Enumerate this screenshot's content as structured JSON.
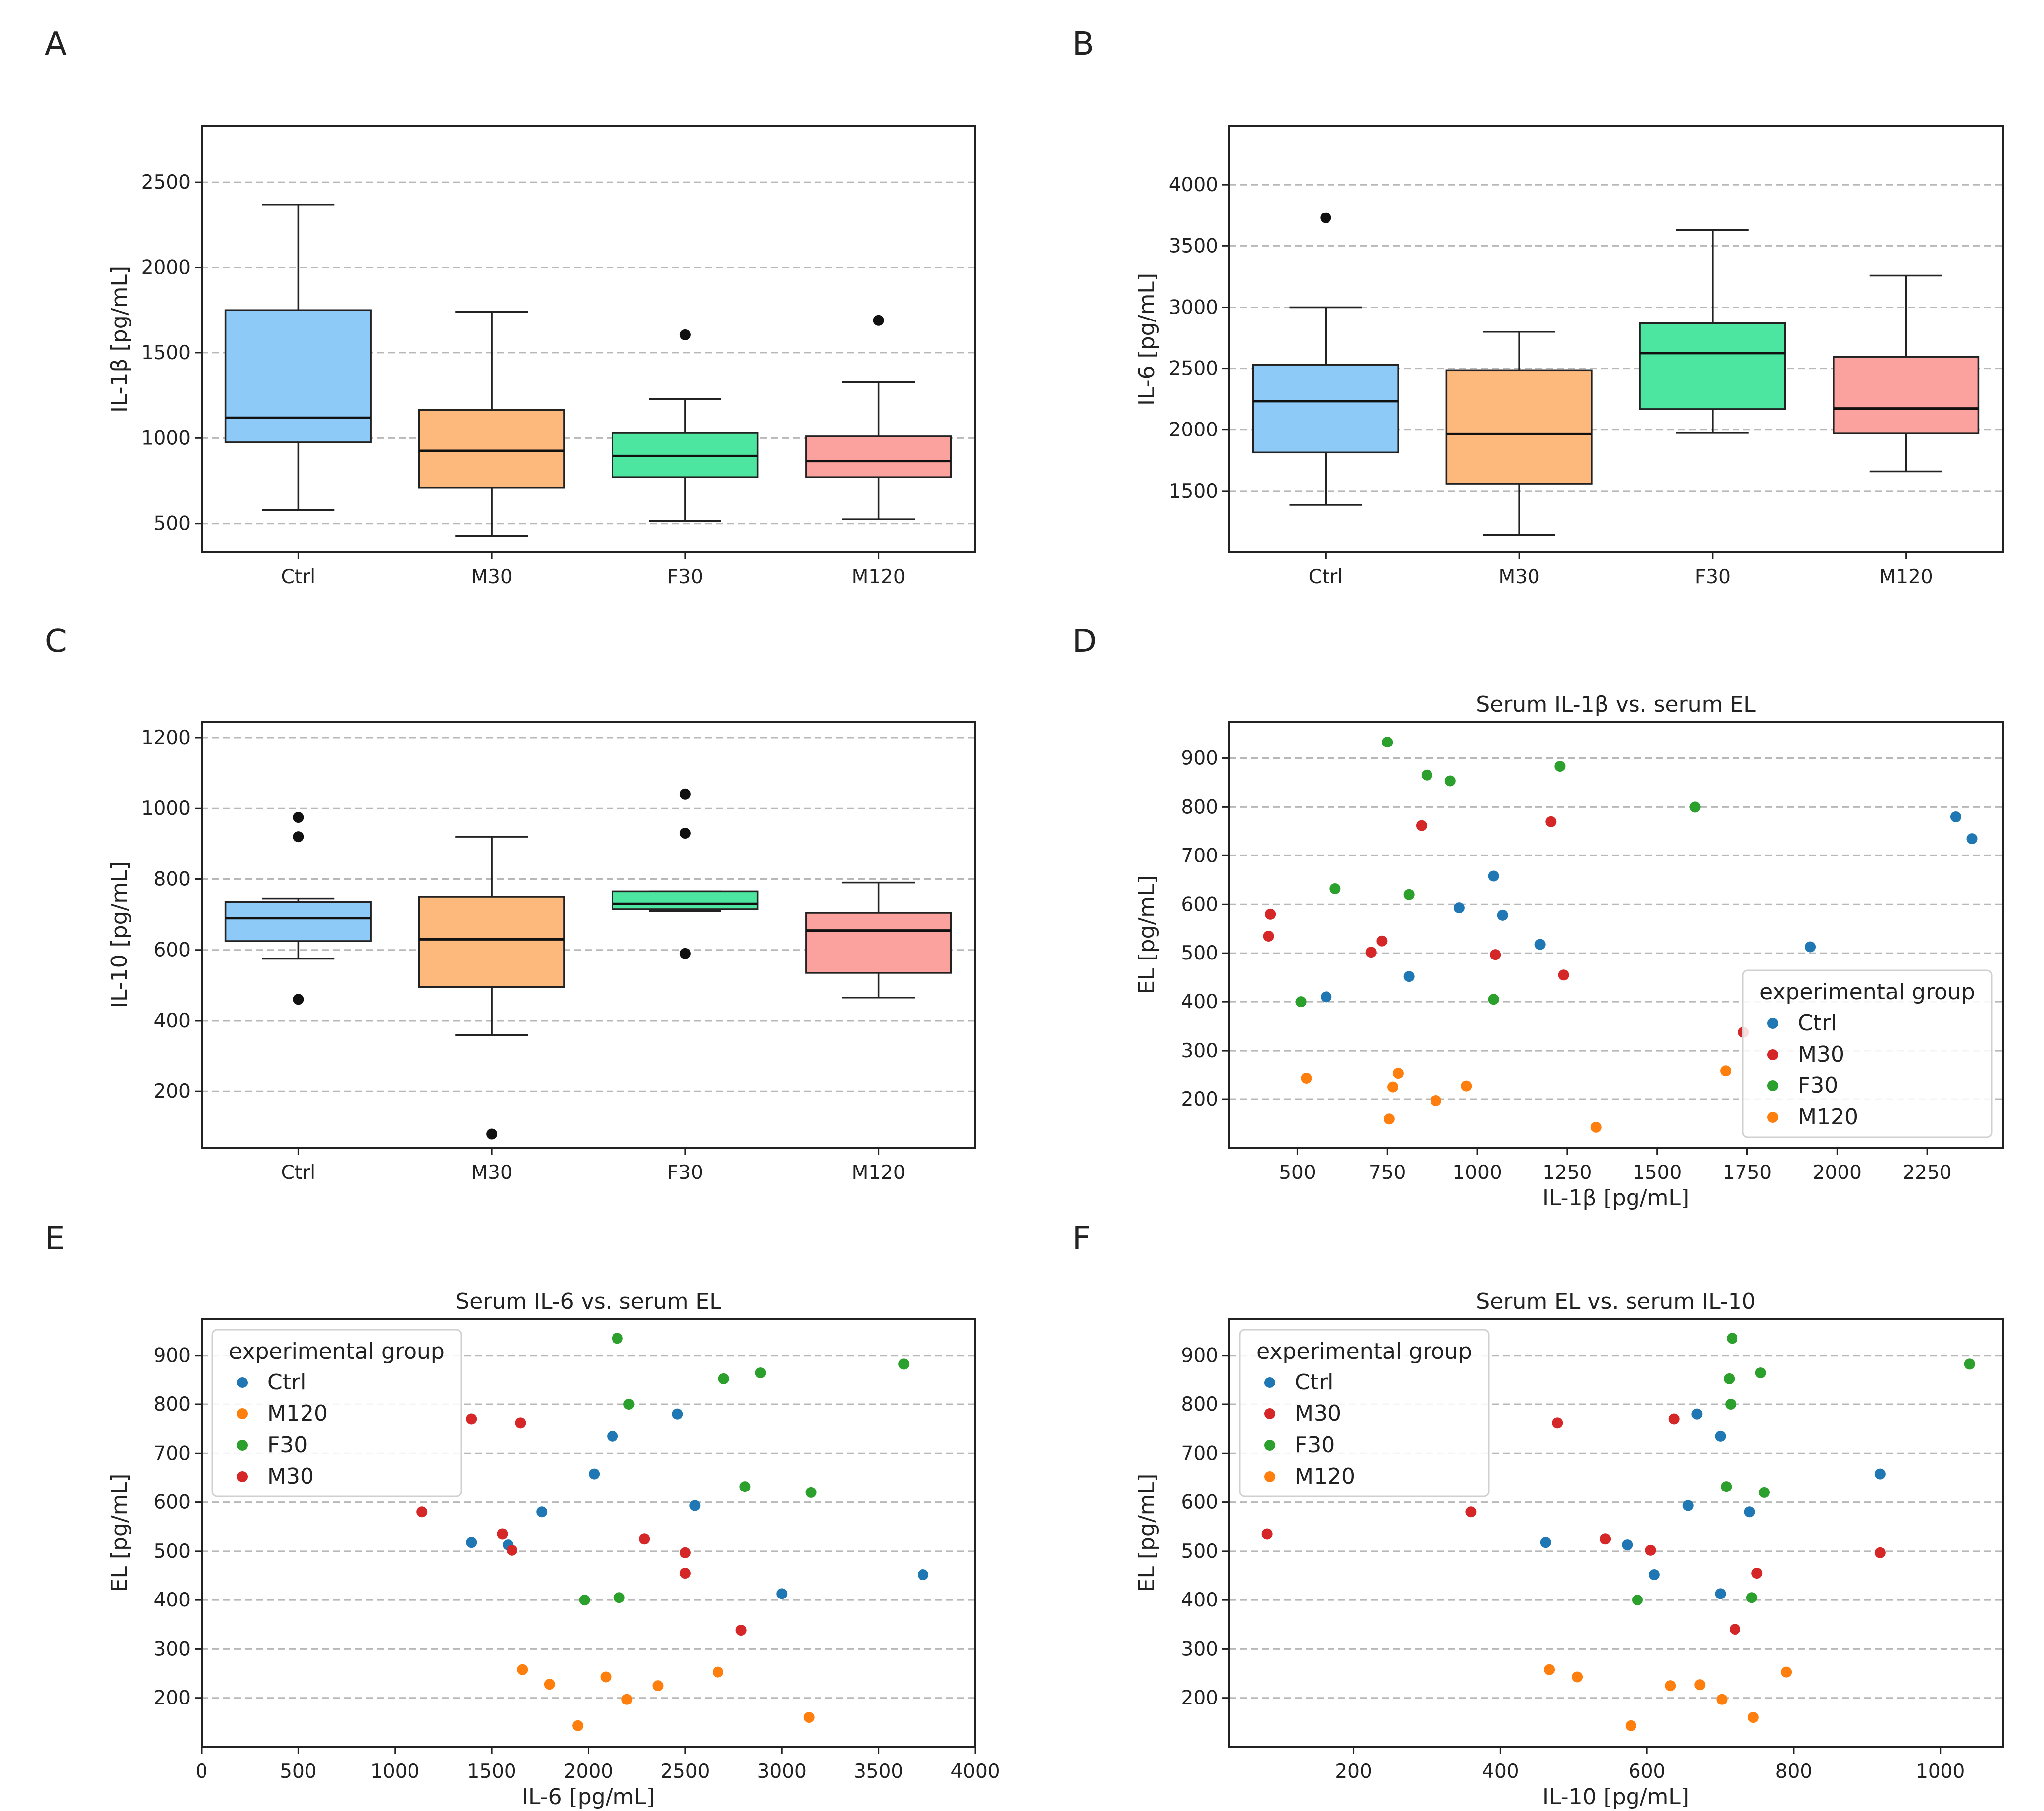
{
  "colors": {
    "Ctrl": "#1f77b4",
    "M30": "#d62728",
    "F30": "#2ca02c",
    "M120": "#ff7f0e",
    "box_Ctrl": "#8ecaf7",
    "box_M30": "#fdb87c",
    "box_F30": "#4ce6a0",
    "box_M120": "#fba29f"
  },
  "chart_data": [
    {
      "id": "A",
      "type": "box",
      "panel_label": "A",
      "title": "",
      "xlabel": "",
      "ylabel": "IL-1β [pg/mL]",
      "categories": [
        "Ctrl",
        "M30",
        "F30",
        "M120"
      ],
      "ylim": [
        330,
        2830
      ],
      "yticks": [
        500,
        1000,
        1500,
        2000,
        2500
      ],
      "grid": true,
      "boxes": [
        {
          "group": "Ctrl",
          "whislo": 580,
          "q1": 975,
          "med": 1120,
          "q3": 1750,
          "whishi": 2370,
          "fliers": []
        },
        {
          "group": "M30",
          "whislo": 425,
          "q1": 710,
          "med": 925,
          "q3": 1165,
          "whishi": 1740,
          "fliers": []
        },
        {
          "group": "F30",
          "whislo": 515,
          "q1": 770,
          "med": 895,
          "q3": 1030,
          "whishi": 1230,
          "fliers": [
            1605
          ]
        },
        {
          "group": "M120",
          "whislo": 525,
          "q1": 770,
          "med": 865,
          "q3": 1010,
          "whishi": 1330,
          "fliers": [
            1690
          ]
        }
      ]
    },
    {
      "id": "B",
      "type": "box",
      "panel_label": "B",
      "title": "",
      "xlabel": "",
      "ylabel": "IL-6 [pg/mL]",
      "categories": [
        "Ctrl",
        "M30",
        "F30",
        "M120"
      ],
      "ylim": [
        1000,
        4480
      ],
      "yticks": [
        1500,
        2000,
        2500,
        3000,
        3500,
        4000
      ],
      "grid": true,
      "boxes": [
        {
          "group": "Ctrl",
          "whislo": 1390,
          "q1": 1815,
          "med": 2235,
          "q3": 2530,
          "whishi": 3000,
          "fliers": [
            3730
          ]
        },
        {
          "group": "M30",
          "whislo": 1140,
          "q1": 1560,
          "med": 1965,
          "q3": 2485,
          "whishi": 2800,
          "fliers": []
        },
        {
          "group": "F30",
          "whislo": 1975,
          "q1": 2170,
          "med": 2625,
          "q3": 2870,
          "whishi": 3630,
          "fliers": []
        },
        {
          "group": "M120",
          "whislo": 1660,
          "q1": 1970,
          "med": 2175,
          "q3": 2595,
          "whishi": 3260,
          "fliers": []
        }
      ]
    },
    {
      "id": "C",
      "type": "box",
      "panel_label": "C",
      "title": "",
      "xlabel": "",
      "ylabel": "IL-10 [pg/mL]",
      "categories": [
        "Ctrl",
        "M30",
        "F30",
        "M120"
      ],
      "ylim": [
        40,
        1245
      ],
      "yticks": [
        200,
        400,
        600,
        800,
        1000,
        1200
      ],
      "grid": true,
      "boxes": [
        {
          "group": "Ctrl",
          "whislo": 575,
          "q1": 625,
          "med": 690,
          "q3": 735,
          "whishi": 745,
          "fliers": [
            460,
            920,
            975
          ]
        },
        {
          "group": "M30",
          "whislo": 360,
          "q1": 495,
          "med": 630,
          "q3": 750,
          "whishi": 920,
          "fliers": [
            80
          ]
        },
        {
          "group": "F30",
          "whislo": 710,
          "q1": 715,
          "med": 730,
          "q3": 765,
          "whishi": 765,
          "fliers": [
            590,
            930,
            1040
          ]
        },
        {
          "group": "M120",
          "whislo": 465,
          "q1": 535,
          "med": 655,
          "q3": 705,
          "whishi": 790,
          "fliers": []
        }
      ]
    },
    {
      "id": "D",
      "type": "scatter",
      "panel_label": "D",
      "title": "Serum IL-1β vs. serum EL",
      "xlabel": "IL-1β [pg/mL]",
      "ylabel": "EL [pg/mL]",
      "xlim": [
        310,
        2460
      ],
      "ylim": [
        100,
        975
      ],
      "xticks": [
        500,
        750,
        1000,
        1250,
        1500,
        1750,
        2000,
        2250
      ],
      "yticks": [
        200,
        300,
        400,
        500,
        600,
        700,
        800,
        900
      ],
      "grid": true,
      "legend": {
        "title": "experimental group",
        "position": "lower-right",
        "order": [
          "Ctrl",
          "M30",
          "F30",
          "M120"
        ]
      },
      "series": [
        {
          "name": "Ctrl",
          "points": [
            [
              2330,
              780
            ],
            [
              2375,
              735
            ],
            [
              1925,
              513
            ],
            [
              1045,
              658
            ],
            [
              1070,
              578
            ],
            [
              950,
              593
            ],
            [
              1175,
              518
            ],
            [
              580,
              410
            ],
            [
              810,
              452
            ]
          ]
        },
        {
          "name": "M30",
          "points": [
            [
              1205,
              770
            ],
            [
              845,
              762
            ],
            [
              425,
              580
            ],
            [
              420,
              535
            ],
            [
              735,
              525
            ],
            [
              705,
              502
            ],
            [
              1050,
              497
            ],
            [
              1240,
              455
            ],
            [
              1740,
              338
            ]
          ]
        },
        {
          "name": "F30",
          "points": [
            [
              750,
              933
            ],
            [
              860,
              865
            ],
            [
              925,
              853
            ],
            [
              1230,
              883
            ],
            [
              1605,
              800
            ],
            [
              605,
              632
            ],
            [
              810,
              620
            ],
            [
              510,
              400
            ],
            [
              1045,
              405
            ]
          ]
        },
        {
          "name": "M120",
          "points": [
            [
              525,
              243
            ],
            [
              780,
              253
            ],
            [
              765,
              225
            ],
            [
              970,
              227
            ],
            [
              885,
              197
            ],
            [
              755,
              160
            ],
            [
              1330,
              143
            ],
            [
              1690,
              258
            ]
          ]
        }
      ]
    },
    {
      "id": "E",
      "type": "scatter",
      "panel_label": "E",
      "title": "Serum IL-6 vs. serum EL",
      "xlabel": "IL-6 [pg/mL]",
      "ylabel": "EL [pg/mL]",
      "xlim": [
        0,
        4000
      ],
      "ylim": [
        100,
        975
      ],
      "xticks": [
        0,
        500,
        1000,
        1500,
        2000,
        2500,
        3000,
        3500,
        4000
      ],
      "yticks": [
        200,
        300,
        400,
        500,
        600,
        700,
        800,
        900
      ],
      "grid": true,
      "legend": {
        "title": "experimental group",
        "position": "upper-left",
        "order": [
          "Ctrl",
          "M120",
          "F30",
          "M30"
        ]
      },
      "series": [
        {
          "name": "Ctrl",
          "points": [
            [
              2460,
              780
            ],
            [
              2125,
              735
            ],
            [
              2030,
              658
            ],
            [
              1760,
              580
            ],
            [
              2550,
              593
            ],
            [
              1395,
              518
            ],
            [
              1585,
              513
            ],
            [
              3000,
              413
            ],
            [
              3730,
              452
            ]
          ]
        },
        {
          "name": "M120",
          "points": [
            [
              1660,
              258
            ],
            [
              1800,
              228
            ],
            [
              2090,
              243
            ],
            [
              2360,
              225
            ],
            [
              2200,
              197
            ],
            [
              2670,
              253
            ],
            [
              1945,
              143
            ],
            [
              3140,
              160
            ]
          ]
        },
        {
          "name": "F30",
          "points": [
            [
              2150,
              935
            ],
            [
              2700,
              853
            ],
            [
              2890,
              865
            ],
            [
              3630,
              883
            ],
            [
              2210,
              800
            ],
            [
              2810,
              632
            ],
            [
              3150,
              620
            ],
            [
              1980,
              400
            ],
            [
              2160,
              405
            ]
          ]
        },
        {
          "name": "M30",
          "points": [
            [
              1395,
              770
            ],
            [
              1650,
              762
            ],
            [
              1140,
              580
            ],
            [
              1555,
              535
            ],
            [
              1605,
              502
            ],
            [
              2290,
              525
            ],
            [
              2500,
              497
            ],
            [
              2500,
              455
            ],
            [
              2790,
              338
            ]
          ]
        }
      ]
    },
    {
      "id": "F",
      "type": "scatter",
      "panel_label": "F",
      "title": "Serum EL vs. serum IL-10",
      "xlabel": "IL-10 [pg/mL]",
      "ylabel": "EL [pg/mL]",
      "xlim": [
        30,
        1085
      ],
      "ylim": [
        100,
        975
      ],
      "xticks": [
        200,
        400,
        600,
        800,
        1000
      ],
      "yticks": [
        200,
        300,
        400,
        500,
        600,
        700,
        800,
        900
      ],
      "grid": true,
      "legend": {
        "title": "experimental group",
        "position": "upper-left",
        "order": [
          "Ctrl",
          "M30",
          "F30",
          "M120"
        ]
      },
      "series": [
        {
          "name": "Ctrl",
          "points": [
            [
              668,
              780
            ],
            [
              700,
              735
            ],
            [
              918,
              658
            ],
            [
              740,
              580
            ],
            [
              656,
              593
            ],
            [
              462,
              518
            ],
            [
              573,
              513
            ],
            [
              700,
              413
            ],
            [
              610,
              452
            ]
          ]
        },
        {
          "name": "M30",
          "points": [
            [
              637,
              770
            ],
            [
              478,
              762
            ],
            [
              82,
              535
            ],
            [
              360,
              580
            ],
            [
              543,
              525
            ],
            [
              605,
              502
            ],
            [
              720,
              340
            ],
            [
              750,
              455
            ],
            [
              918,
              497
            ]
          ]
        },
        {
          "name": "F30",
          "points": [
            [
              716,
              935
            ],
            [
              712,
              853
            ],
            [
              755,
              865
            ],
            [
              1040,
              883
            ],
            [
              714,
              800
            ],
            [
              708,
              632
            ],
            [
              760,
              620
            ],
            [
              587,
              400
            ],
            [
              743,
              405
            ]
          ]
        },
        {
          "name": "M120",
          "points": [
            [
              467,
              258
            ],
            [
              505,
              243
            ],
            [
              632,
              225
            ],
            [
              672,
              227
            ],
            [
              702,
              197
            ],
            [
              790,
              253
            ],
            [
              578,
              143
            ],
            [
              745,
              160
            ]
          ]
        }
      ]
    }
  ]
}
